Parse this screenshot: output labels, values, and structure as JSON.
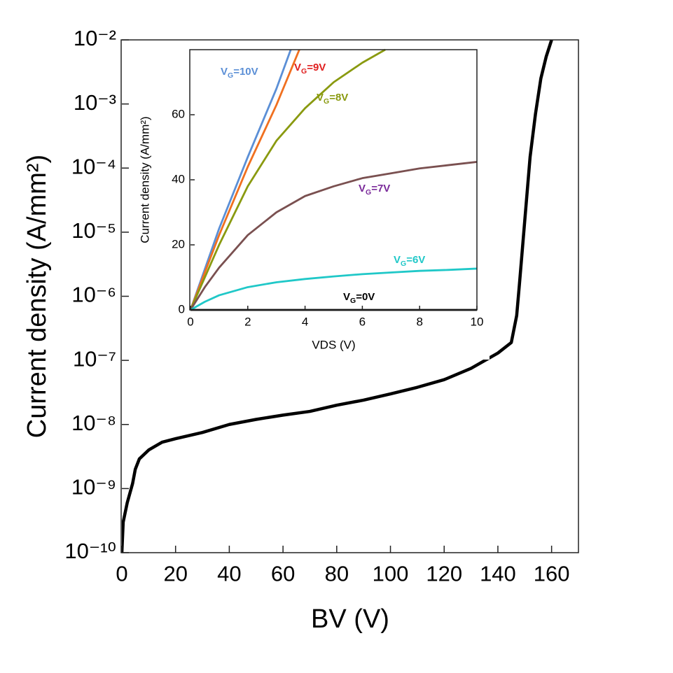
{
  "chart_data": [
    {
      "type": "line",
      "log_y": true,
      "x_label": "BV (V)",
      "y_label": "Current density (A/mm²)",
      "x": [
        0,
        0.5,
        2,
        4,
        5,
        6.5,
        10,
        15,
        20,
        30,
        40,
        50,
        60,
        70,
        80,
        90,
        100,
        110,
        120,
        130,
        140,
        145,
        147,
        148,
        150,
        152,
        154,
        156,
        158,
        160
      ],
      "values": [
        1e-10,
        3e-10,
        6e-10,
        1.2e-09,
        2e-09,
        2.9e-09,
        4e-09,
        5.3e-09,
        6e-09,
        7.5e-09,
        1e-08,
        1.2e-08,
        1.4e-08,
        1.6e-08,
        2e-08,
        2.4e-08,
        3e-08,
        3.8e-08,
        5e-08,
        7.5e-08,
        1.3e-07,
        1.9e-07,
        5e-07,
        1.5e-06,
        1.5e-05,
        0.00015,
        0.0007,
        0.0025,
        0.0055,
        0.01
      ],
      "color": "#000000",
      "xlim": [
        0,
        170
      ],
      "xticks": [
        0,
        20,
        40,
        60,
        80,
        100,
        120,
        140,
        160
      ],
      "ylim": [
        1e-10,
        0.01
      ],
      "yticks": [
        {
          "value": 1e-10,
          "label": "10⁻¹⁰"
        },
        {
          "value": 1e-09,
          "label": "10⁻⁹"
        },
        {
          "value": 1e-08,
          "label": "10⁻⁸"
        },
        {
          "value": 1e-07,
          "label": "10⁻⁷"
        },
        {
          "value": 1e-06,
          "label": "10⁻⁶"
        },
        {
          "value": 1e-05,
          "label": "10⁻⁵"
        },
        {
          "value": 0.0001,
          "label": "10⁻⁴"
        },
        {
          "value": 0.001,
          "label": "10⁻³"
        },
        {
          "value": 0.01,
          "label": "10⁻²"
        }
      ]
    },
    {
      "type": "line",
      "log_y": false,
      "x_label": "VDS (V)",
      "y_label": "Current density (A/mm²)",
      "series": [
        {
          "name": "VG=10V",
          "color": "#5b8fd6",
          "x": [
            0,
            1,
            2,
            3,
            3.5
          ],
          "values": [
            0,
            25,
            47,
            68,
            80
          ]
        },
        {
          "name": "VG=9V",
          "color": "#f07020",
          "x": [
            0,
            1,
            2,
            3,
            3.8
          ],
          "values": [
            0,
            23,
            44,
            63,
            80
          ]
        },
        {
          "name": "VG=8V",
          "color": "#8a9a10",
          "x": [
            0,
            1,
            2,
            3,
            4,
            5,
            6,
            6.8
          ],
          "values": [
            0,
            20,
            38,
            52,
            62,
            70,
            76,
            80
          ]
        },
        {
          "name": "VG=7V",
          "color": "#7a5050",
          "x": [
            0,
            0.5,
            1,
            1.5,
            2,
            3,
            4,
            5,
            6,
            7,
            8,
            9,
            10
          ],
          "values": [
            0,
            7,
            13,
            18,
            23,
            30,
            35,
            38,
            40.5,
            42,
            43.5,
            44.5,
            45.5
          ]
        },
        {
          "name": "VG=6V",
          "color": "#20c8c8",
          "x": [
            0,
            0.5,
            1,
            2,
            3,
            4,
            5,
            6,
            7,
            8,
            9,
            10
          ],
          "values": [
            0,
            2.5,
            4.5,
            7,
            8.5,
            9.5,
            10.3,
            11,
            11.5,
            12,
            12.3,
            12.7
          ]
        },
        {
          "name": "VG=0V",
          "color": "#000000",
          "x": [
            0,
            10
          ],
          "values": [
            0,
            0
          ]
        }
      ],
      "label_colors": [
        "#5b8fd6",
        "#e02020",
        "#8a9a10",
        "#7a2a9a",
        "#20c8c8",
        "#000000"
      ],
      "xlim": [
        0,
        10
      ],
      "xticks": [
        0,
        2,
        4,
        6,
        8,
        10
      ],
      "ylim": [
        0,
        80
      ],
      "yticks": [
        0,
        20,
        40,
        60
      ]
    }
  ]
}
